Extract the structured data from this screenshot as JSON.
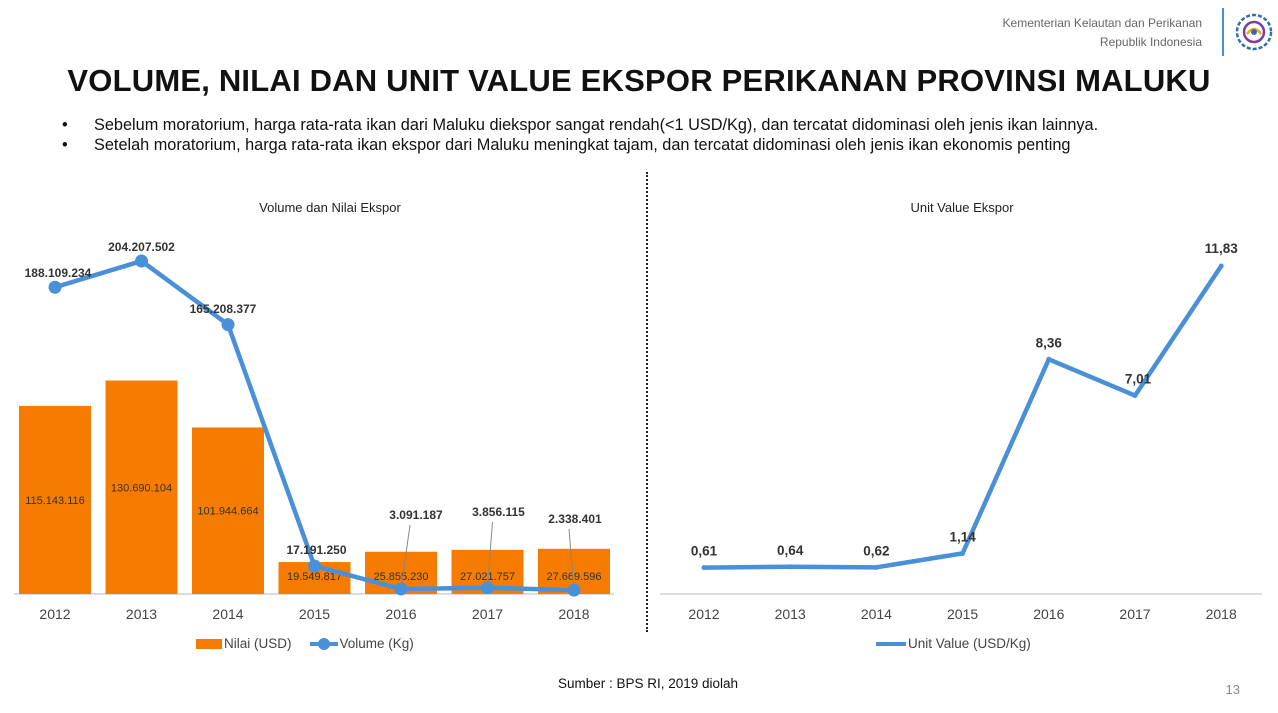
{
  "header": {
    "org_line1": "Kementerian Kelautan dan Perikanan",
    "org_line2": "Republik Indonesia",
    "logo_icon": "kkp-logo-icon"
  },
  "title": "VOLUME, NILAI DAN UNIT VALUE EKSPOR PERIKANAN PROVINSI MALUKU",
  "bullets": [
    "Sebelum moratorium, harga rata-rata ikan dari Maluku diekspor sangat rendah(<1 USD/Kg), dan tercatat didominasi oleh jenis ikan lainnya.",
    "Setelah moratorium, harga rata-rata ikan ekspor dari Maluku meningkat tajam, dan tercatat didominasi oleh jenis ikan ekonomis penting"
  ],
  "chart_data": [
    {
      "type": "bar+line",
      "title": "Volume dan Nilai Ekspor",
      "categories": [
        "2012",
        "2013",
        "2014",
        "2015",
        "2016",
        "2017",
        "2018"
      ],
      "series": [
        {
          "name": "Nilai (USD)",
          "type": "bar",
          "color": "#f57c00",
          "values": [
            115143116,
            130690104,
            101944664,
            19549817,
            25855230,
            27021757,
            27669596
          ],
          "labels": [
            "115.143.116",
            "130.690.104",
            "101.944.664",
            "19.549.817",
            "25.855.230",
            "27.021.757",
            "27.669.596"
          ]
        },
        {
          "name": "Volume (Kg)",
          "type": "line",
          "color": "#4a90d9",
          "values": [
            188109234,
            204207502,
            165208377,
            17191250,
            3091187,
            3856115,
            2338401
          ],
          "labels": [
            "188.109.234",
            "204.207.502",
            "165.208.377",
            "17.191.250",
            "3.091.187",
            "3.856.115",
            "2.338.401"
          ]
        }
      ],
      "legend_position": "bottom",
      "grid": false
    },
    {
      "type": "line",
      "title": "Unit Value Ekspor",
      "categories": [
        "2012",
        "2013",
        "2014",
        "2015",
        "2016",
        "2017",
        "2018"
      ],
      "series": [
        {
          "name": "Unit Value (USD/Kg)",
          "color": "#4a90d9",
          "values": [
            0.61,
            0.64,
            0.62,
            1.14,
            8.36,
            7.01,
            11.83
          ],
          "labels": [
            "0,61",
            "0,64",
            "0,62",
            "1,14",
            "8,36",
            "7,01",
            "11,83"
          ]
        }
      ],
      "legend_position": "bottom",
      "grid": false
    }
  ],
  "source": "Sumber : BPS RI, 2019 diolah",
  "page_number": "13"
}
